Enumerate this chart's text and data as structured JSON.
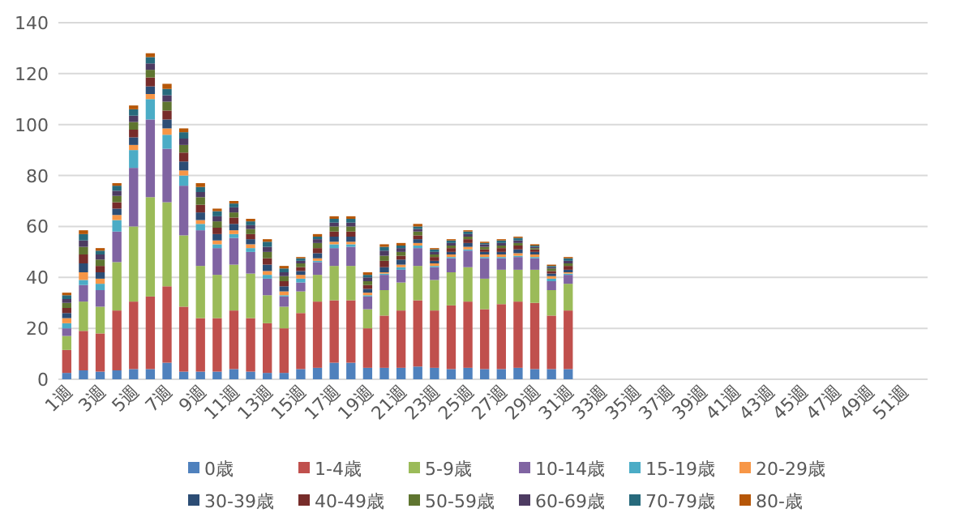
{
  "chart_data": {
    "type": "bar",
    "stacked": true,
    "grid": "y",
    "legend": "bottom",
    "categories": [
      "1週",
      null,
      "3週",
      null,
      "5週",
      null,
      "7週",
      null,
      "9週",
      null,
      "11週",
      null,
      "13週",
      null,
      "15週",
      null,
      "17週",
      null,
      "19週",
      null,
      "21週",
      null,
      "23週",
      null,
      "25週",
      null,
      "27週",
      null,
      "29週",
      null,
      "31週",
      null,
      "33週",
      null,
      "35週",
      null,
      "37週",
      null,
      "39週",
      null,
      "41週",
      null,
      "43週",
      null,
      "45週",
      null,
      "47週",
      null,
      "49週",
      null,
      "51週",
      null
    ],
    "ylim": [
      0,
      140
    ],
    "yticks": [
      0,
      20,
      40,
      60,
      80,
      100,
      120,
      140
    ],
    "series": [
      {
        "name": "0歳",
        "color": "#4f81bd",
        "values": [
          2.5,
          3.5,
          3,
          3.5,
          4,
          4,
          6.5,
          3,
          3,
          3,
          4,
          3,
          2.5,
          2.5,
          4,
          4.5,
          6.5,
          6.5,
          4.5,
          4.5,
          4.5,
          5,
          4.5,
          4,
          4.5,
          4,
          4,
          4.5,
          4,
          4,
          4,
          null,
          null,
          null,
          null,
          null,
          null,
          null,
          null,
          null,
          null,
          null,
          null,
          null,
          null,
          null,
          null,
          null,
          null,
          null,
          null,
          null
        ]
      },
      {
        "name": "1-4歳",
        "color": "#c0504d",
        "values": [
          9,
          15.5,
          15,
          23.5,
          26.5,
          28.5,
          30,
          25.5,
          21,
          21,
          23,
          21,
          19.5,
          17.5,
          22,
          26,
          24.5,
          24.5,
          15.5,
          20.5,
          22.5,
          26,
          22.5,
          25,
          26,
          23.5,
          25.5,
          26,
          26,
          21,
          23,
          null,
          null,
          null,
          null,
          null,
          null,
          null,
          null,
          null,
          null,
          null,
          null,
          null,
          null,
          null,
          null,
          null,
          null,
          null,
          null,
          null
        ]
      },
      {
        "name": "5-9歳",
        "color": "#9bbb59",
        "values": [
          5.5,
          11.5,
          10.5,
          19,
          29.5,
          39,
          33,
          28,
          20.5,
          17,
          18,
          17.5,
          11,
          8.5,
          8.5,
          10.5,
          13.5,
          13.5,
          7.5,
          10,
          11,
          13.5,
          12,
          13,
          13.5,
          12,
          13.5,
          12.5,
          13,
          10,
          10.5,
          null,
          null,
          null,
          null,
          null,
          null,
          null,
          null,
          null,
          null,
          null,
          null,
          null,
          null,
          null,
          null,
          null,
          null,
          null,
          null,
          null
        ]
      },
      {
        "name": "10-14歳",
        "color": "#8064a2",
        "values": [
          3,
          6.5,
          6.5,
          12,
          23,
          30.5,
          21,
          19.5,
          14,
          10.5,
          10.5,
          8.5,
          6.5,
          4,
          3.5,
          5,
          7,
          7.5,
          5,
          6,
          5,
          7,
          5,
          5.5,
          6.5,
          8,
          4.5,
          5,
          4.5,
          3.5,
          3.5,
          null,
          null,
          null,
          null,
          null,
          null,
          null,
          null,
          null,
          null,
          null,
          null,
          null,
          null,
          null,
          null,
          null,
          null,
          null,
          null,
          null
        ]
      },
      {
        "name": "15-19歳",
        "color": "#4bacc6",
        "values": [
          2,
          2,
          2.5,
          4.5,
          7,
          8,
          5.5,
          4,
          2.5,
          1.5,
          1.5,
          1.5,
          1.5,
          0.5,
          1.5,
          0.5,
          1.5,
          1,
          0.5,
          0.5,
          1,
          1,
          0.5,
          0.5,
          0.5,
          0.5,
          0.5,
          0.5,
          0.5,
          1,
          0.5,
          null,
          null,
          null,
          null,
          null,
          null,
          null,
          null,
          null,
          null,
          null,
          null,
          null,
          null,
          null,
          null,
          null,
          null,
          null,
          null,
          null
        ]
      },
      {
        "name": "20-29歳",
        "color": "#f79646",
        "values": [
          2,
          3,
          2,
          2,
          2,
          2,
          2.5,
          2,
          1.5,
          1.5,
          1.5,
          1.5,
          1.5,
          1.5,
          1.5,
          1,
          1,
          1,
          1,
          0.5,
          1,
          1,
          1,
          1,
          1,
          1,
          1,
          1,
          1,
          1,
          0.5,
          null,
          null,
          null,
          null,
          null,
          null,
          null,
          null,
          null,
          null,
          null,
          null,
          null,
          null,
          null,
          null,
          null,
          null,
          null,
          null,
          null
        ]
      },
      {
        "name": "30-39歳",
        "color": "#2c4d75",
        "values": [
          2,
          3.5,
          2.5,
          2.5,
          3,
          3,
          3.5,
          3.5,
          3,
          2.5,
          2.5,
          2,
          2.5,
          2,
          1.5,
          2,
          2,
          2,
          1.5,
          2,
          2,
          1.5,
          1,
          1,
          1.5,
          1,
          1,
          1.5,
          1,
          1,
          1,
          null,
          null,
          null,
          null,
          null,
          null,
          null,
          null,
          null,
          null,
          null,
          null,
          null,
          null,
          null,
          null,
          null,
          null,
          null,
          null,
          null
        ]
      },
      {
        "name": "40-49歳",
        "color": "#772c2a",
        "values": [
          2,
          3.5,
          2.5,
          2.5,
          3,
          3.5,
          3.5,
          3.5,
          3,
          2.5,
          2.5,
          2,
          2.5,
          2,
          1.5,
          2,
          2,
          2,
          1.5,
          2.5,
          1.5,
          1.5,
          1.5,
          1.5,
          1.5,
          1,
          1.5,
          1.5,
          1,
          1,
          1.5,
          null,
          null,
          null,
          null,
          null,
          null,
          null,
          null,
          null,
          null,
          null,
          null,
          null,
          null,
          null,
          null,
          null,
          null,
          null,
          null,
          null
        ]
      },
      {
        "name": "50-59歳",
        "color": "#5f7530",
        "values": [
          2,
          3,
          2.5,
          2.5,
          3,
          3,
          3.5,
          3,
          3,
          2.5,
          2,
          2,
          2.5,
          2,
          1.5,
          2,
          2,
          2,
          1.5,
          2,
          1.5,
          1.5,
          1,
          1,
          1,
          1,
          1,
          1,
          0.5,
          1,
          1,
          null,
          null,
          null,
          null,
          null,
          null,
          null,
          null,
          null,
          null,
          null,
          null,
          null,
          null,
          null,
          null,
          null,
          null,
          null,
          null,
          null
        ]
      },
      {
        "name": "60-69歳",
        "color": "#4d3b62",
        "values": [
          1.5,
          2.5,
          2,
          2,
          2.5,
          2.5,
          2.5,
          2.5,
          2,
          2,
          2,
          1.5,
          2,
          1.5,
          1,
          1.5,
          1.5,
          1.5,
          1.5,
          2,
          1.5,
          1,
          1,
          1,
          1,
          1,
          1,
          1,
          0.5,
          0.5,
          1,
          null,
          null,
          null,
          null,
          null,
          null,
          null,
          null,
          null,
          null,
          null,
          null,
          null,
          null,
          null,
          null,
          null,
          null,
          null,
          null,
          null
        ]
      },
      {
        "name": "70-79歳",
        "color": "#276a7c",
        "values": [
          1.5,
          2.5,
          1.5,
          2,
          2.5,
          2.5,
          2.5,
          2.5,
          2,
          2,
          1.5,
          1.5,
          2,
          1.5,
          1,
          1,
          1.5,
          1.5,
          1,
          1.5,
          1,
          1,
          1,
          1,
          1,
          0.5,
          1,
          1,
          0.5,
          0.5,
          1,
          null,
          null,
          null,
          null,
          null,
          null,
          null,
          null,
          null,
          null,
          null,
          null,
          null,
          null,
          null,
          null,
          null,
          null,
          null,
          null,
          null
        ]
      },
      {
        "name": "80-歳",
        "color": "#b65708",
        "values": [
          1,
          1.5,
          1,
          1,
          1.5,
          1.5,
          2,
          1.5,
          1.5,
          1,
          1,
          1,
          1,
          1,
          0.5,
          1,
          1,
          1,
          1,
          1,
          1,
          1,
          0.5,
          0.5,
          0.5,
          0.5,
          0.5,
          0.5,
          0.5,
          0.5,
          0.5,
          null,
          null,
          null,
          null,
          null,
          null,
          null,
          null,
          null,
          null,
          null,
          null,
          null,
          null,
          null,
          null,
          null,
          null,
          null,
          null,
          null
        ]
      }
    ]
  }
}
